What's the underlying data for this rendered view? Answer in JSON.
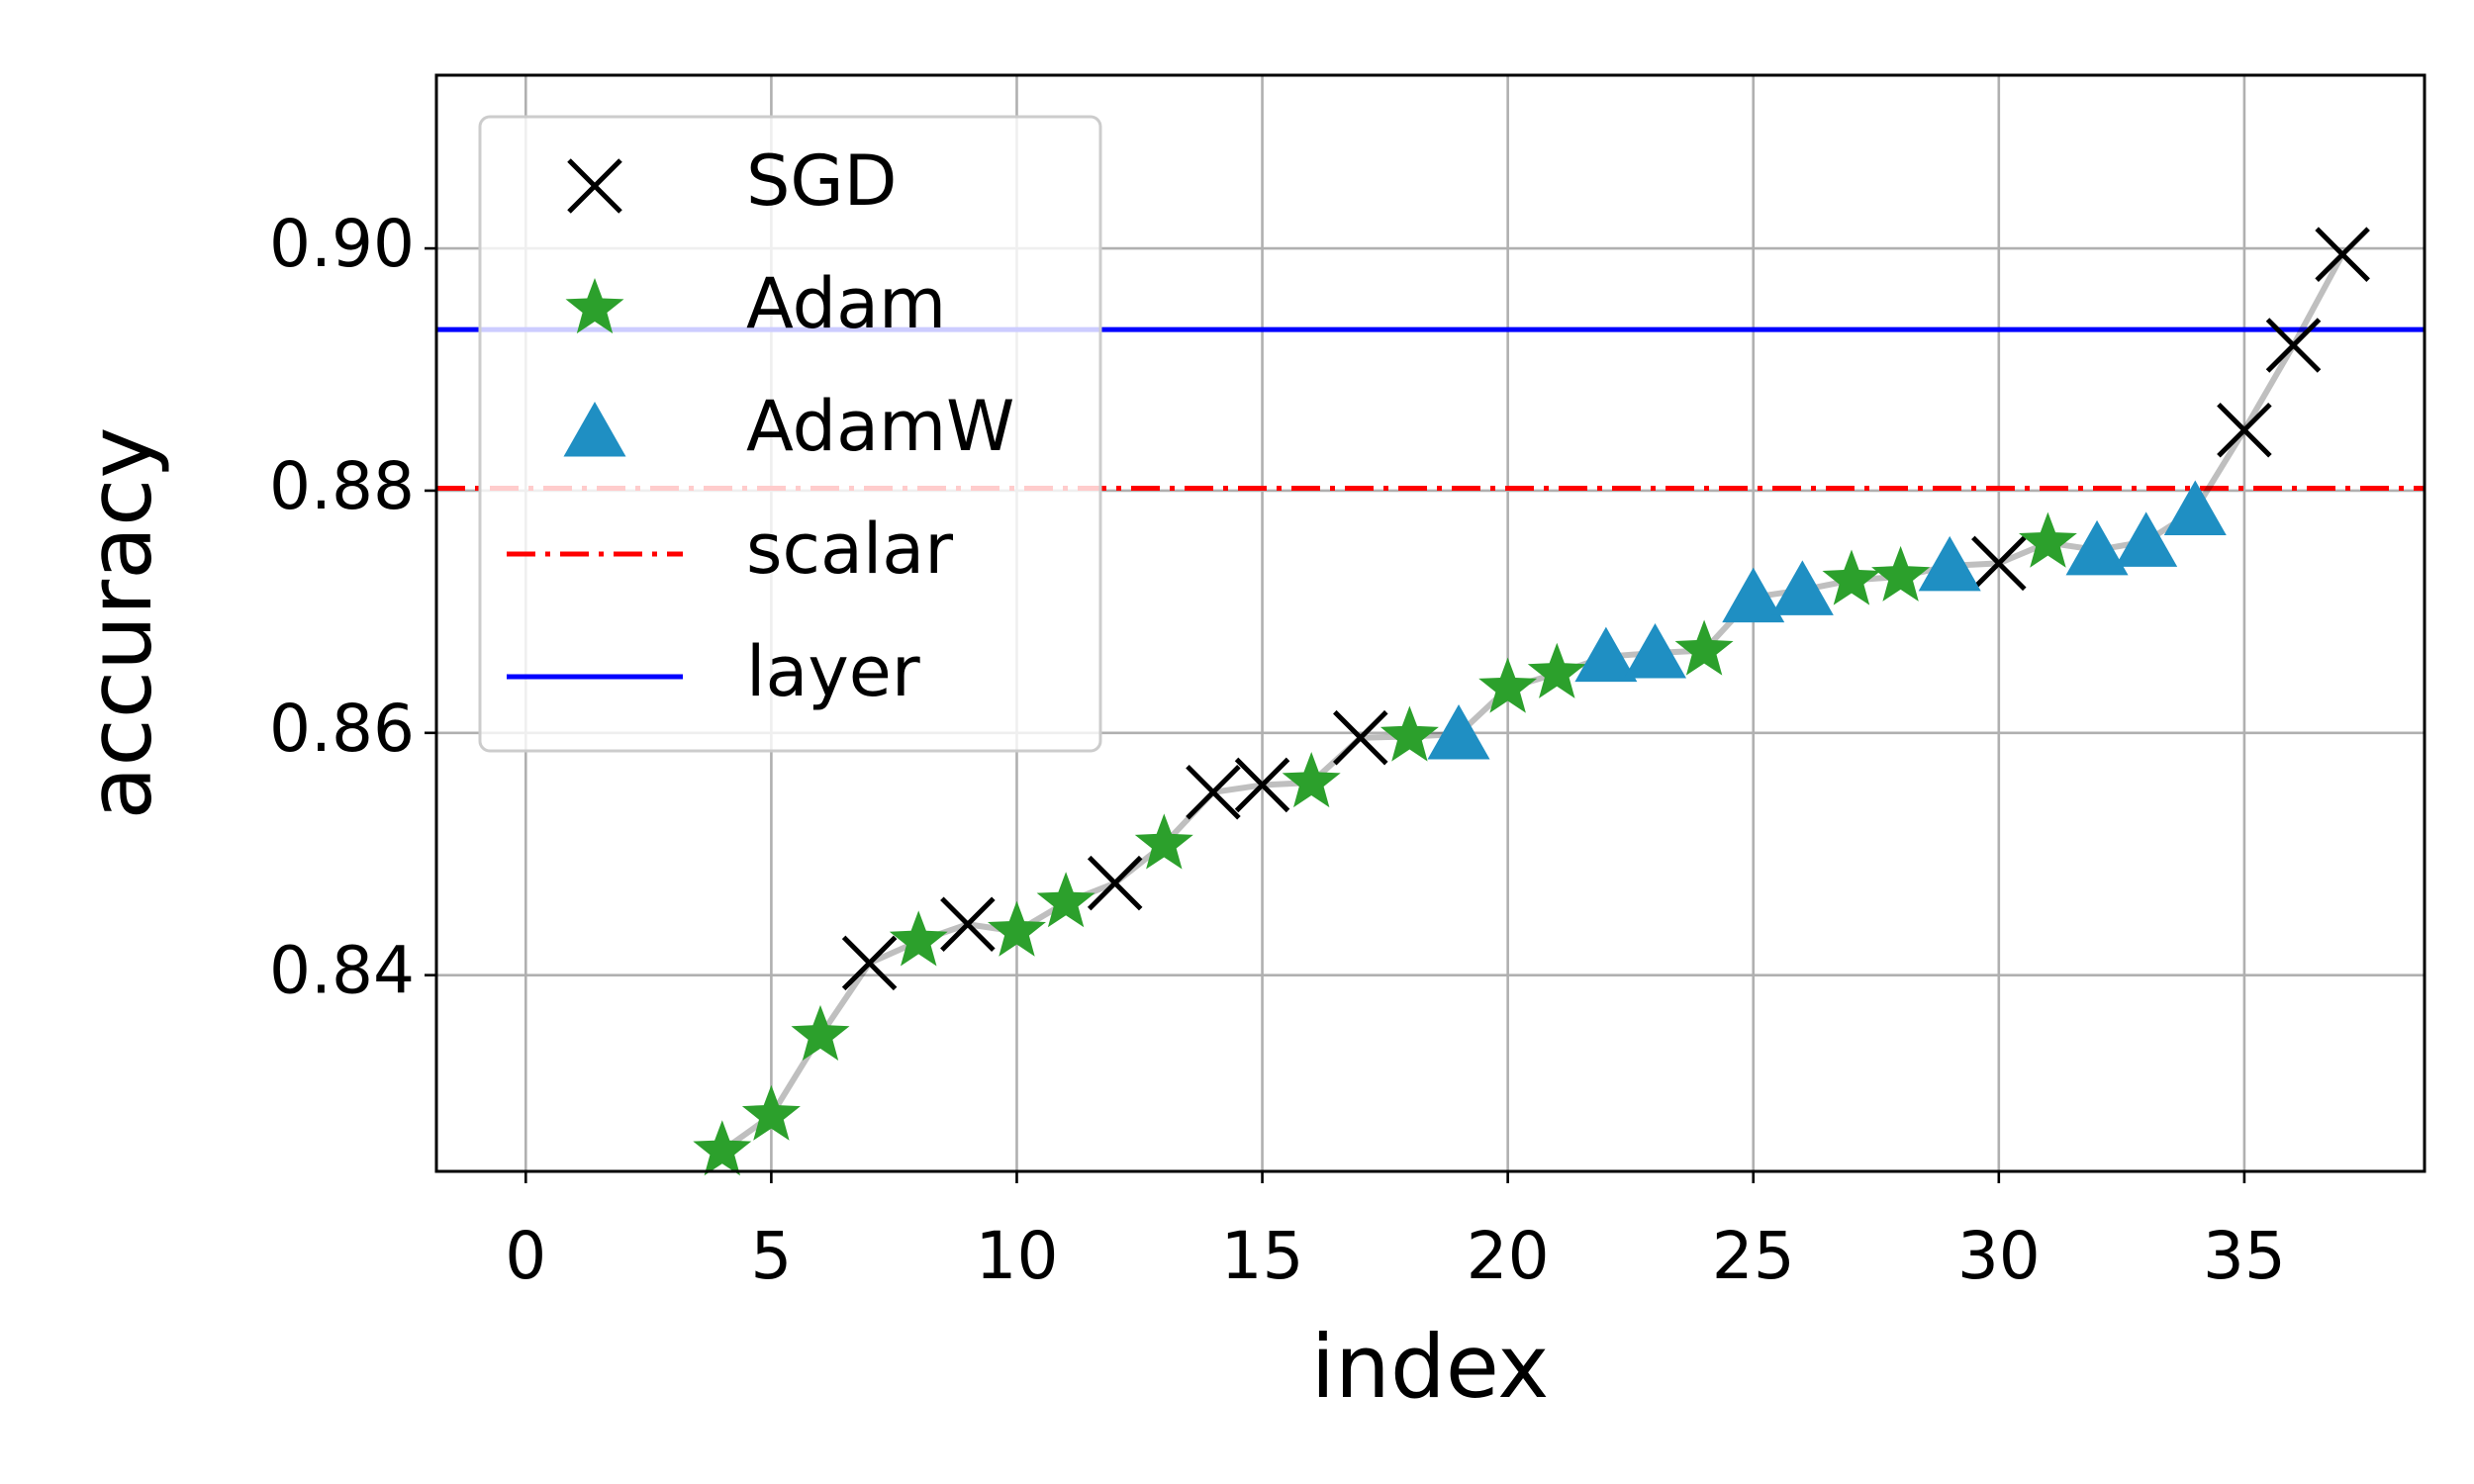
{
  "chart_data": {
    "type": "scatter",
    "x_label": "index",
    "y_label": "accuracy",
    "xlim": [
      -1.82,
      38.67
    ],
    "ylim": [
      0.8238,
      0.9143
    ],
    "xticks": [
      0,
      5,
      10,
      15,
      20,
      25,
      30,
      35
    ],
    "yticks": [
      0.84,
      0.86,
      0.88,
      {
        "value": 0.9,
        "label": "0.90"
      }
    ],
    "grid": true,
    "legend": "upper left",
    "series": [
      {
        "name": "SGD",
        "color": "#000000",
        "marker": "x",
        "x": [
          7,
          9,
          12,
          14,
          15,
          17,
          30,
          35,
          36,
          37
        ],
        "values": [
          0.841,
          0.8442,
          0.8476,
          0.8551,
          0.8557,
          0.8596,
          0.874,
          0.885,
          0.892,
          0.8995
        ]
      },
      {
        "name": "Adam",
        "color": "#2ca02c",
        "marker": "star",
        "x": [
          4,
          5,
          6,
          8,
          10,
          11,
          13,
          16,
          18,
          20,
          21,
          24,
          27,
          28,
          31
        ],
        "values": [
          0.8255,
          0.8284,
          0.835,
          0.8428,
          0.8436,
          0.846,
          0.8508,
          0.8559,
          0.8597,
          0.8637,
          0.8649,
          0.8668,
          0.8726,
          0.8729,
          0.8757
        ]
      },
      {
        "name": "AdamW",
        "color": "#1f8fc3",
        "marker": "triangle",
        "x": [
          19,
          22,
          23,
          25,
          26,
          29,
          32,
          33,
          34
        ],
        "values": [
          0.8599,
          0.8663,
          0.8666,
          0.8712,
          0.8718,
          0.8738,
          0.8751,
          0.8758,
          0.8784
        ]
      }
    ],
    "hlines": [
      {
        "name": "scalar",
        "value": 0.8802,
        "color": "#ff0000",
        "style": "dashdot"
      },
      {
        "name": "layer",
        "value": 0.8933,
        "color": "#0000ff",
        "style": "solid"
      }
    ]
  }
}
